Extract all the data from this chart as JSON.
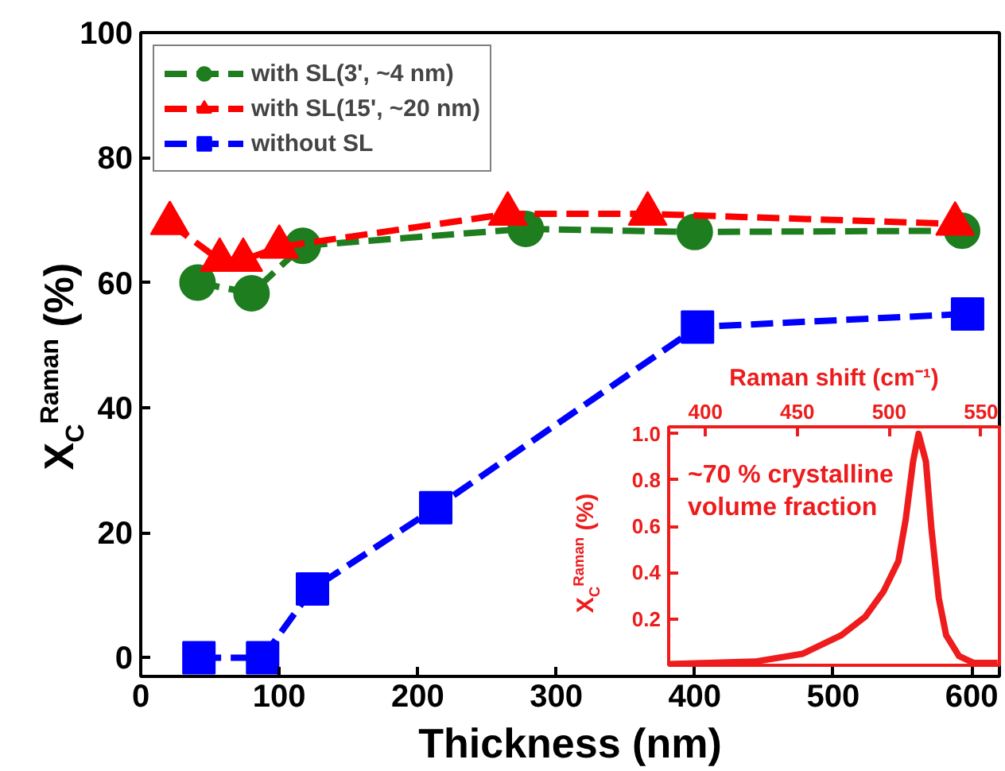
{
  "chart_data": [
    {
      "type": "line",
      "xlabel": "Thickness (nm)",
      "ylabel": "X$_{C}$$^{Raman}$ (%)",
      "xlim": [
        0,
        620
      ],
      "xticks": [
        0,
        100,
        200,
        300,
        400,
        500,
        600
      ],
      "ylim": [
        -3,
        100
      ],
      "yticks": [
        0,
        20,
        40,
        60,
        80,
        100
      ],
      "grid": false,
      "legend": "top left",
      "line_style": "dashed",
      "series": [
        {
          "name": "with SL(3', ~4 nm)",
          "color": "#1e7d1e",
          "marker": "circle",
          "x": [
            41,
            80,
            117,
            278,
            400,
            593
          ],
          "values": [
            60,
            58.3,
            65.9,
            68.6,
            68.1,
            68.3
          ]
        },
        {
          "name": "with SL(15', ~20 nm)",
          "color": "#ff0000",
          "marker": "triangle",
          "x": [
            21,
            57,
            74,
            100,
            265,
            366,
            588
          ],
          "values": [
            69.5,
            63.6,
            63.6,
            65.7,
            71,
            71,
            69.4
          ]
        },
        {
          "name": "without SL",
          "color": "#0000ff",
          "marker": "square",
          "x": [
            42,
            88,
            124,
            213,
            402,
            597
          ],
          "values": [
            0,
            0,
            11,
            24,
            52.9,
            55
          ]
        }
      ]
    },
    {
      "type": "line",
      "xlabel": "Raman shift (cm⁻¹)",
      "ylabel": "X$_{C}$$^{Raman}$ (%)",
      "xlim": [
        380,
        560
      ],
      "xticks": [
        400,
        450,
        500,
        550
      ],
      "ylim": [
        0,
        1.03
      ],
      "yticks": [
        0.2,
        0.4,
        0.6,
        0.8,
        {
          "value": 1,
          "label": "1.0"
        }
      ],
      "grid": false,
      "annotations": [
        "~70 % crystalline\nvolume fraction"
      ],
      "series": [
        {
          "color": "#ee1c1c",
          "x": [
            380,
            427,
            453,
            474,
            487,
            497,
            505,
            509,
            513,
            516,
            520,
            523,
            527,
            531,
            538,
            546,
            559
          ],
          "values": [
            0.005,
            0.016,
            0.05,
            0.13,
            0.21,
            0.32,
            0.45,
            0.63,
            0.88,
            1.0,
            0.88,
            0.59,
            0.29,
            0.13,
            0.04,
            0.01,
            0.01
          ]
        }
      ]
    }
  ]
}
